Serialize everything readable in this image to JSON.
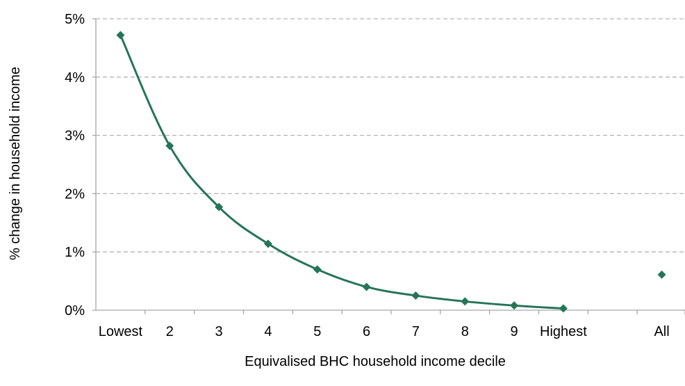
{
  "chart_data": {
    "type": "line",
    "title": "",
    "xlabel": "Equivalised BHC household income decile",
    "ylabel": "% change in household income",
    "categories": [
      "Lowest",
      "2",
      "3",
      "4",
      "5",
      "6",
      "7",
      "8",
      "9",
      "Highest",
      "",
      "All"
    ],
    "ylim": [
      0,
      5
    ],
    "yticks": [
      0,
      1,
      2,
      3,
      4,
      5
    ],
    "ytick_labels": [
      "0%",
      "1%",
      "2%",
      "3%",
      "4%",
      "5%"
    ],
    "grid": true,
    "legend": "none",
    "series": [
      {
        "style": "line-with-markers",
        "color": "#257557",
        "x": [
          "Lowest",
          "2",
          "3",
          "4",
          "5",
          "6",
          "7",
          "8",
          "9",
          "Highest"
        ],
        "values": [
          4.72,
          2.82,
          1.77,
          1.14,
          0.7,
          0.4,
          0.25,
          0.15,
          0.08,
          0.03
        ]
      },
      {
        "style": "marker-only",
        "color": "#257557",
        "x": [
          "All"
        ],
        "values": [
          0.61
        ]
      }
    ]
  }
}
